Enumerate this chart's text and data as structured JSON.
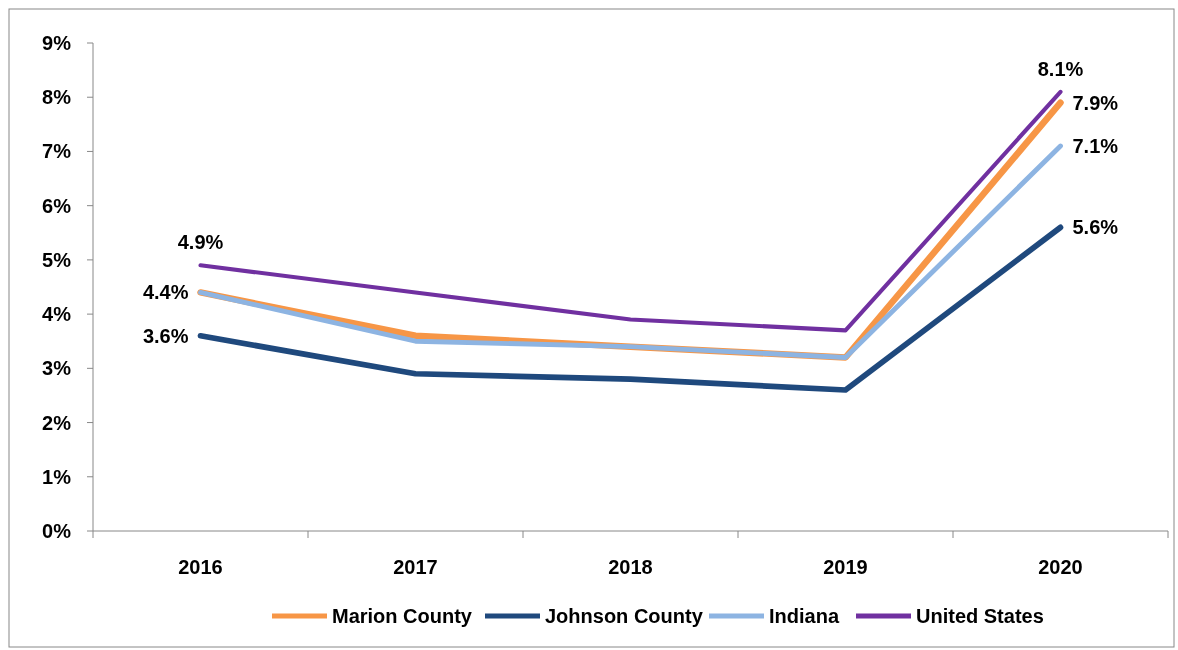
{
  "chart_data": {
    "type": "line",
    "categories": [
      "2016",
      "2017",
      "2018",
      "2019",
      "2020"
    ],
    "series": [
      {
        "name": "Marion County",
        "color": "#f79646",
        "values": [
          4.4,
          3.6,
          3.4,
          3.2,
          7.9
        ],
        "value_labels": [
          null,
          null,
          null,
          null,
          "7.9%"
        ]
      },
      {
        "name": "Johnson County",
        "color": "#1f497d",
        "values": [
          3.6,
          2.9,
          2.8,
          2.6,
          5.6
        ],
        "value_labels": [
          "3.6%",
          null,
          null,
          null,
          "5.6%"
        ]
      },
      {
        "name": "Indiana",
        "color": "#8db4e2",
        "values": [
          4.4,
          3.5,
          3.4,
          3.2,
          7.1
        ],
        "value_labels": [
          "4.4%",
          null,
          null,
          null,
          "7.1%"
        ]
      },
      {
        "name": "United States",
        "color": "#7030a0",
        "values": [
          4.9,
          4.4,
          3.9,
          3.7,
          8.1
        ],
        "value_labels": [
          "4.9%",
          null,
          null,
          null,
          "8.1%"
        ]
      }
    ],
    "ylim": [
      0,
      9
    ],
    "yticks": [
      {
        "value": 0,
        "label": "0%"
      },
      {
        "value": 1,
        "label": "1%"
      },
      {
        "value": 2,
        "label": "2%"
      },
      {
        "value": 3,
        "label": "3%"
      },
      {
        "value": 4,
        "label": "4%"
      },
      {
        "value": 5,
        "label": "5%"
      },
      {
        "value": 6,
        "label": "6%"
      },
      {
        "value": 7,
        "label": "7%"
      },
      {
        "value": 8,
        "label": "8%"
      },
      {
        "value": 9,
        "label": "9%"
      }
    ],
    "grid": false,
    "legend": "bottom",
    "marker": "none",
    "line_style": "solid"
  }
}
